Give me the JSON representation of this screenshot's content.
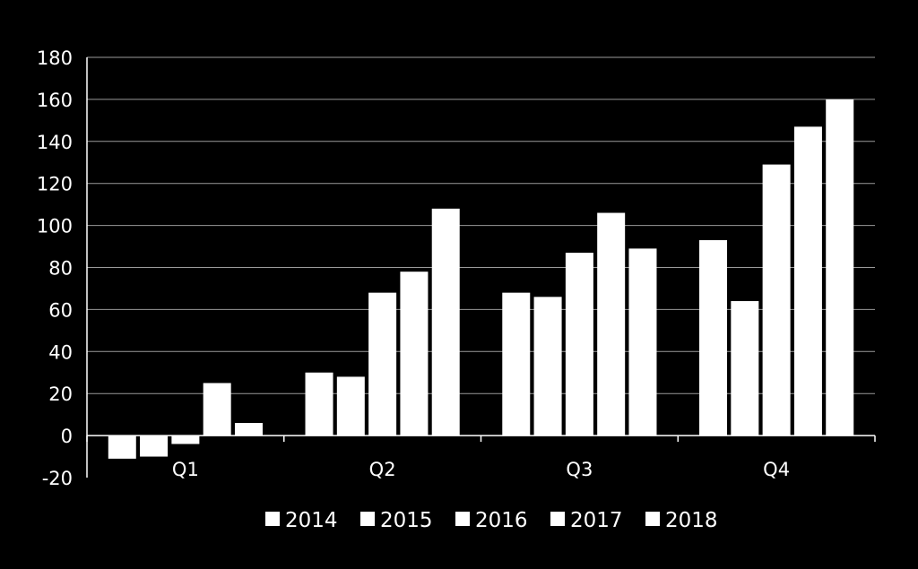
{
  "chart_data": {
    "type": "bar",
    "categories": [
      "Q1",
      "Q2",
      "Q3",
      "Q4"
    ],
    "series": [
      {
        "name": "2014",
        "values": [
          -11,
          30,
          68,
          93
        ]
      },
      {
        "name": "2015",
        "values": [
          -10,
          28,
          66,
          64
        ]
      },
      {
        "name": "2016",
        "values": [
          -4,
          68,
          87,
          129
        ]
      },
      {
        "name": "2017",
        "values": [
          25,
          78,
          106,
          147
        ]
      },
      {
        "name": "2018",
        "values": [
          6,
          108,
          89,
          160
        ]
      }
    ],
    "ylim": [
      -20,
      180
    ],
    "yticks": [
      "-20",
      "0",
      "20",
      "40",
      "60",
      "80",
      "100",
      "120",
      "140",
      "160",
      "180"
    ],
    "grid": true,
    "legend_position": "bottom",
    "colors": {
      "background": "#000000",
      "bars": "#ffffff",
      "grid": "#9a9a9a",
      "axis": "#ffffff"
    }
  }
}
